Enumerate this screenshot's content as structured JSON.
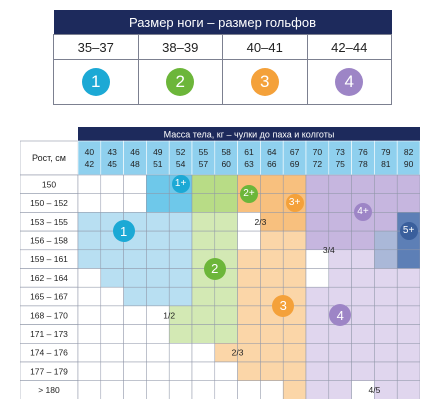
{
  "shoe_table": {
    "header": "Размер ноги – размер гольфов",
    "sizes": [
      "35–37",
      "38–39",
      "40–41",
      "42–44"
    ],
    "circles": [
      "1",
      "2",
      "3",
      "4"
    ],
    "colors": [
      "#1ca9d5",
      "#6cb63a",
      "#f4a13a",
      "#9d85c6"
    ]
  },
  "grid": {
    "weight_header": "Масса тела, кг – чулки до паха и колготы",
    "height_header": "Рост, см",
    "weight_columns": [
      [
        "40",
        "42"
      ],
      [
        "43",
        "45"
      ],
      [
        "46",
        "48"
      ],
      [
        "49",
        "51"
      ],
      [
        "52",
        "54"
      ],
      [
        "55",
        "57"
      ],
      [
        "58",
        "60"
      ],
      [
        "61",
        "63"
      ],
      [
        "64",
        "66"
      ],
      [
        "67",
        "69"
      ],
      [
        "70",
        "72"
      ],
      [
        "73",
        "75"
      ],
      [
        "76",
        "78"
      ],
      [
        "79",
        "81"
      ],
      [
        "82",
        "90"
      ]
    ],
    "height_rows": [
      "150",
      "150 – 152",
      "153 – 155",
      "156 – 158",
      "159 – 161",
      "162 – 164",
      "165 – 167",
      "168 – 170",
      "171 – 173",
      "174 – 176",
      "177 – 179",
      "> 180"
    ],
    "cells": [
      "W W W 1 1 2 2 3 3 3 4 4 4 4 4",
      "W W W 1 1 2 2 3 3 3 4 4 4 4 4",
      "1 1 1 1 1 2 2 W 3 3 4 4 4 4 5",
      "1 1 1 1 1 2 2 W 3 3 4 4 4 5 5",
      "1 1 1 1 1 2 2 3 3 3 W 4 4 5 5",
      "W 1 1 1 1 2 2 3 3 3 W 4 4 4 4",
      "W W 1 1 1 2 2 3 3 3 4 4 4 4 4",
      "W W W W 2 2 2 3 3 3 4 4 4 4 4",
      "W W W W 2 2 2 3 3 3 4 4 4 4 4",
      "W W W W W W 3 3 3 3 4 4 4 4 4",
      "W W W W W W W 3 3 3 4 4 4 4 4",
      "W W W W W W W W W 3 4 4 W 4 4"
    ],
    "cell_colors": {
      "W": "#ffffff",
      "1": "#b8dff2",
      "1+": "#6ec8ea",
      "2": "#d3e9b4",
      "2+": "#b8dc86",
      "3": "#fbd6a8",
      "3+": "#f8c07e",
      "4": "#e0d6ee",
      "4+": "#c6b6df",
      "5": "#aab8d8",
      "5+": "#5d7fb6"
    },
    "header_color": "#1d2a5c",
    "subheader_color": "#8fd0ee",
    "markers": [
      {
        "label": "1+",
        "type": "small",
        "color": "#1ca9d5"
      },
      {
        "label": "2+",
        "type": "small",
        "color": "#6cb63a"
      },
      {
        "label": "3+",
        "type": "small",
        "color": "#f4a13a"
      },
      {
        "label": "4+",
        "type": "small",
        "color": "#9d85c6"
      },
      {
        "label": "5+",
        "type": "small",
        "color": "#3a5f9c"
      },
      {
        "label": "1",
        "type": "big",
        "color": "#1ca9d5"
      },
      {
        "label": "2",
        "type": "big",
        "color": "#6cb63a"
      },
      {
        "label": "3",
        "type": "big",
        "color": "#f4a13a"
      },
      {
        "label": "4",
        "type": "big",
        "color": "#9d85c6"
      }
    ],
    "boundary_labels": [
      "1/2",
      "2/3",
      "2/3",
      "3/4",
      "4/5"
    ]
  }
}
